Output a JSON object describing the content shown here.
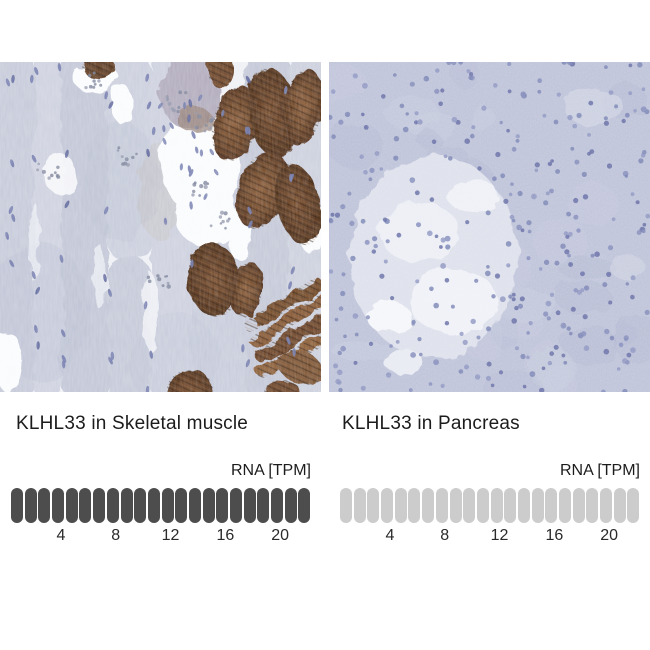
{
  "figure": {
    "panels": [
      {
        "id": "skeletal_muscle",
        "title": "KLHL33 in Skeletal muscle",
        "scale_label": "RNA [TPM]",
        "ticks": [
          4,
          8,
          12,
          16,
          20
        ],
        "dots_total": 22,
        "dots_filled": 22,
        "dot_filled_color": "#4d4d4d",
        "dot_empty_color": "#cccccc",
        "stain_colors": {
          "tissue_background": "#cbcfdd",
          "dab_brown": "#6b4326",
          "hematoxylin_nuclei": "#6f78ab"
        }
      },
      {
        "id": "pancreas",
        "title": "KLHL33 in Pancreas",
        "scale_label": "RNA [TPM]",
        "ticks": [
          4,
          8,
          12,
          16,
          20
        ],
        "dots_total": 22,
        "dots_filled": 0,
        "dot_filled_color": "#4d4d4d",
        "dot_empty_color": "#cccccc",
        "stain_colors": {
          "tissue_background": "#bdc2d8",
          "hematoxylin_nuclei": "#7a83b4"
        }
      }
    ]
  },
  "chart_data": [
    {
      "type": "bar",
      "variant": "unit-pictogram-scale",
      "title": "KLHL33 in Skeletal muscle",
      "xlabel": "RNA [TPM]",
      "x_ticks": [
        4,
        8,
        12,
        16,
        20
      ],
      "xlim": [
        0,
        22
      ],
      "units_total": 22,
      "units_filled": 22,
      "legend_position": "none",
      "grid": false
    },
    {
      "type": "bar",
      "variant": "unit-pictogram-scale",
      "title": "KLHL33 in Pancreas",
      "xlabel": "RNA [TPM]",
      "x_ticks": [
        4,
        8,
        12,
        16,
        20
      ],
      "xlim": [
        0,
        22
      ],
      "units_total": 22,
      "units_filled": 0,
      "legend_position": "none",
      "grid": false
    }
  ]
}
